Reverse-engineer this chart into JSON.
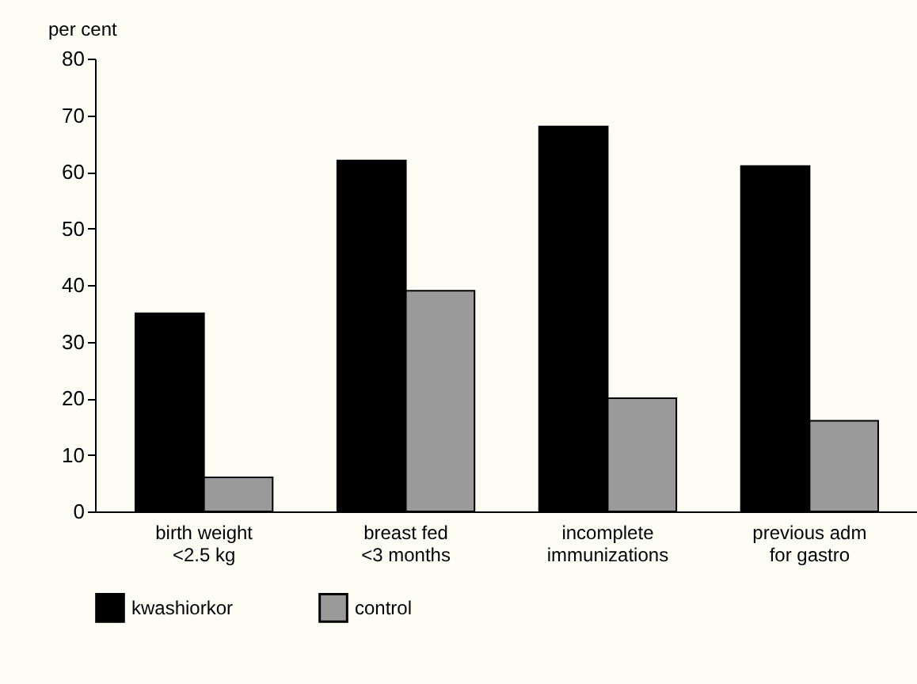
{
  "chart_data": {
    "type": "bar",
    "ylabel": "per cent",
    "categories": [
      "birth weight\n<2.5 kg",
      "breast fed\n<3 months",
      "incomplete\nimmunizations",
      "previous adm\nfor gastro"
    ],
    "series": [
      {
        "name": "kwashiorkor",
        "color": "#000000",
        "values": [
          35,
          62,
          68,
          61
        ]
      },
      {
        "name": "control",
        "color": "#9a9a9a",
        "values": [
          6,
          39,
          20,
          16
        ]
      }
    ],
    "ylim": [
      0,
      80
    ],
    "yticks": [
      0,
      10,
      20,
      30,
      40,
      50,
      60,
      70,
      80
    ],
    "grid": false,
    "legend": "bottom"
  }
}
